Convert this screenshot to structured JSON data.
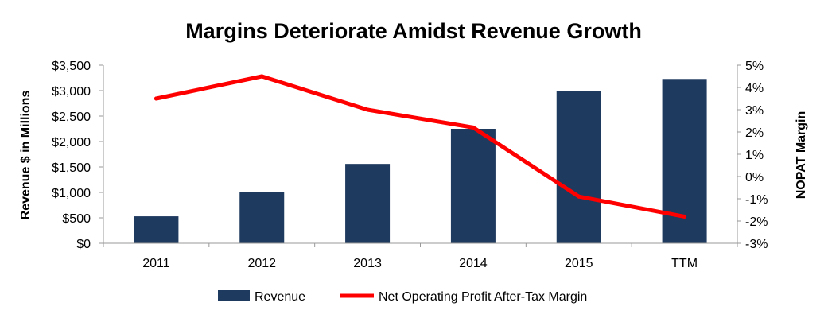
{
  "chart_data": {
    "type": "bar",
    "title": "Margins Deteriorate Amidst Revenue Growth",
    "categories": [
      "2011",
      "2012",
      "2013",
      "2014",
      "2015",
      "TTM"
    ],
    "series": [
      {
        "name": "Revenue",
        "type": "bar",
        "axis": "left",
        "color": "#1f3a5f",
        "values": [
          530,
          1000,
          1560,
          2250,
          3000,
          3230
        ]
      },
      {
        "name": "Net Operating Profit After-Tax Margin",
        "type": "line",
        "axis": "right",
        "color": "#ff0000",
        "values": [
          3.5,
          4.5,
          3.0,
          2.2,
          -0.9,
          -1.8
        ]
      }
    ],
    "ylabel": "Revenue $ in Millions",
    "y2label": "NOPAT Margin",
    "ylim": [
      0,
      3500
    ],
    "y2lim": [
      -3,
      5
    ],
    "yticks": [
      "$0",
      "$500",
      "$1,000",
      "$1,500",
      "$2,000",
      "$2,500",
      "$3,000",
      "$3,500"
    ],
    "y2ticks": [
      "-3%",
      "-2%",
      "-1%",
      "0%",
      "1%",
      "2%",
      "3%",
      "4%",
      "5%"
    ],
    "grid": false,
    "legend": "bottom"
  }
}
